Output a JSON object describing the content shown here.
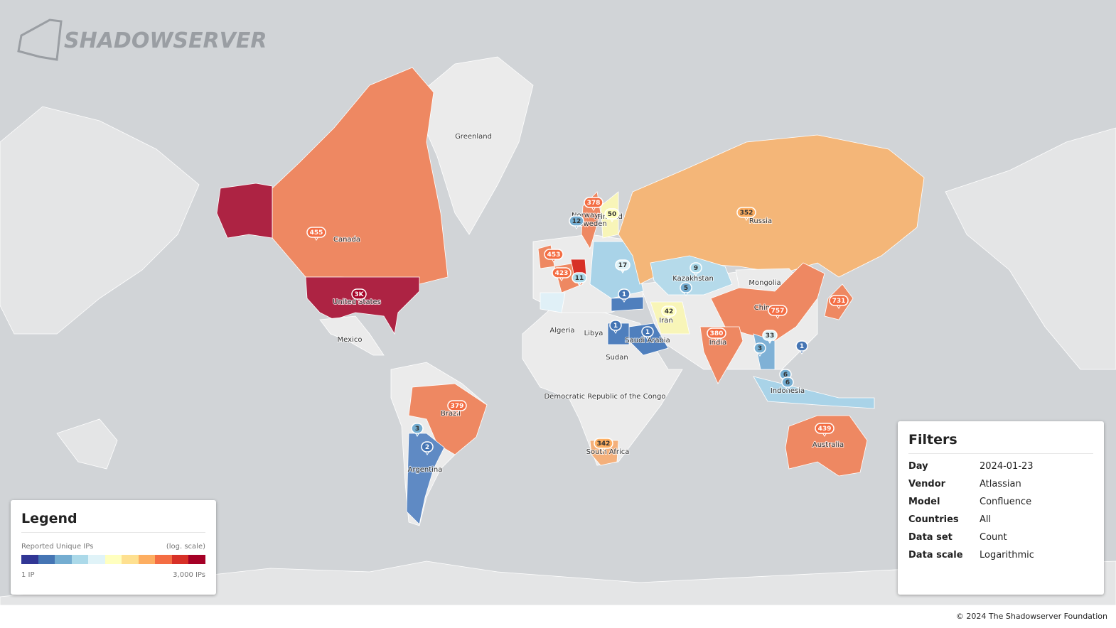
{
  "logo": "SHADOWSERVER",
  "country_labels": [
    "Greenland",
    "Canada",
    "United States",
    "Mexico",
    "Brazil",
    "Argentina",
    "Algeria",
    "Libya",
    "Sudan",
    "Democratic Republic of the Congo",
    "South Africa",
    "Saudi Arabia",
    "Iran",
    "India",
    "China",
    "Mongolia",
    "Kazakhstan",
    "Russia",
    "Indonesia",
    "Australia",
    "Norway",
    "Finland",
    "Sweden"
  ],
  "markers": [
    {
      "label": "455",
      "color": "#f46d43"
    },
    {
      "label": "3K",
      "color": "#a50026"
    },
    {
      "label": "379",
      "color": "#f46d43"
    },
    {
      "label": "3",
      "color": "#74add1"
    },
    {
      "label": "2",
      "color": "#4575b4"
    },
    {
      "label": "453",
      "color": "#f46d43"
    },
    {
      "label": "423",
      "color": "#f46d43"
    },
    {
      "label": "378",
      "color": "#f46d43"
    },
    {
      "label": "12",
      "color": "#74add1"
    },
    {
      "label": "50",
      "color": "#ffffbf"
    },
    {
      "label": "11",
      "color": "#abd9e9"
    },
    {
      "label": "17",
      "color": "#e0f3f8"
    },
    {
      "label": "1",
      "color": "#4575b4"
    },
    {
      "label": "1",
      "color": "#4575b4"
    },
    {
      "label": "1",
      "color": "#4575b4"
    },
    {
      "label": "42",
      "color": "#ffffbf"
    },
    {
      "label": "9",
      "color": "#abd9e9"
    },
    {
      "label": "5",
      "color": "#74add1"
    },
    {
      "label": "352",
      "color": "#fdae61"
    },
    {
      "label": "380",
      "color": "#f46d43"
    },
    {
      "label": "757",
      "color": "#f46d43"
    },
    {
      "label": "731",
      "color": "#f46d43"
    },
    {
      "label": "33",
      "color": "#e0f3f8"
    },
    {
      "label": "3",
      "color": "#74add1"
    },
    {
      "label": "1",
      "color": "#4575b4"
    },
    {
      "label": "6",
      "color": "#74add1"
    },
    {
      "label": "6",
      "color": "#74add1"
    },
    {
      "label": "342",
      "color": "#fdae61"
    },
    {
      "label": "439",
      "color": "#f46d43"
    }
  ],
  "legend": {
    "title": "Legend",
    "caption": "Reported Unique IPs",
    "scale_note": "(log. scale)",
    "min_label": "1 IP",
    "max_label": "3,000 IPs",
    "colors": [
      "#313695",
      "#4575b4",
      "#74add1",
      "#abd9e9",
      "#e0f3f8",
      "#ffffbf",
      "#fee090",
      "#fdae61",
      "#f46d43",
      "#d73027",
      "#a50026"
    ]
  },
  "filters": {
    "title": "Filters",
    "rows": [
      [
        "Day",
        "2024-01-23"
      ],
      [
        "Vendor",
        "Atlassian"
      ],
      [
        "Model",
        "Confluence"
      ],
      [
        "Countries",
        "All"
      ],
      [
        "Data set",
        "Count"
      ],
      [
        "Data scale",
        "Logarithmic"
      ]
    ]
  },
  "footer": "© 2024 The Shadowserver Foundation"
}
